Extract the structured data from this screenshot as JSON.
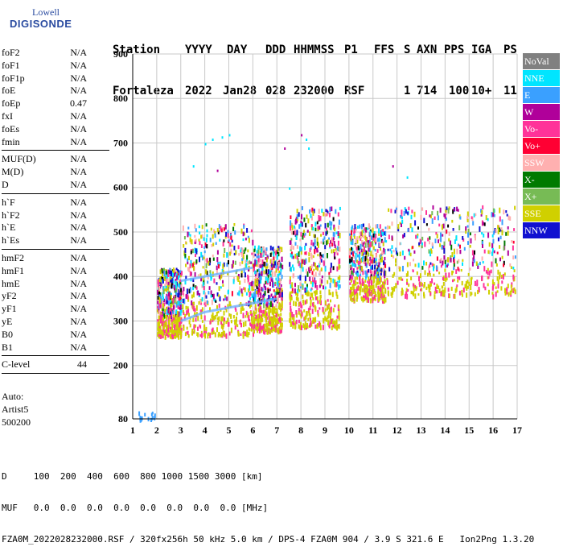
{
  "logo": {
    "line1": "Lowell",
    "line2": "DIGISONDE"
  },
  "header": {
    "labels": [
      "Station",
      "YYYY",
      "DAY",
      "DDD",
      "HHMMSS",
      "P1",
      "FFS",
      "S",
      "AXN",
      "PPS",
      "IGA",
      "PS"
    ],
    "values": [
      "Fortaleza",
      "2022",
      "Jan28",
      "028",
      "232000",
      "RSF",
      "",
      "1",
      "714",
      "100",
      "10+",
      "11"
    ]
  },
  "params": {
    "group1": [
      {
        "name": "foF2",
        "value": "N/A"
      },
      {
        "name": "foF1",
        "value": "N/A"
      },
      {
        "name": "foF1p",
        "value": "N/A"
      },
      {
        "name": "foE",
        "value": "N/A"
      },
      {
        "name": "foEp",
        "value": "0.47"
      },
      {
        "name": "fxI",
        "value": "N/A"
      },
      {
        "name": "foEs",
        "value": "N/A"
      },
      {
        "name": "fmin",
        "value": "N/A"
      }
    ],
    "group2": [
      {
        "name": "MUF(D)",
        "value": "N/A"
      },
      {
        "name": "M(D)",
        "value": "N/A"
      },
      {
        "name": "D",
        "value": "N/A"
      }
    ],
    "group3": [
      {
        "name": "h`F",
        "value": "N/A"
      },
      {
        "name": "h`F2",
        "value": "N/A"
      },
      {
        "name": "h`E",
        "value": "N/A"
      },
      {
        "name": "h`Es",
        "value": "N/A"
      }
    ],
    "group4": [
      {
        "name": "hmF2",
        "value": "N/A"
      },
      {
        "name": "hmF1",
        "value": "N/A"
      },
      {
        "name": "hmE",
        "value": "N/A"
      },
      {
        "name": "yF2",
        "value": "N/A"
      },
      {
        "name": "yF1",
        "value": "N/A"
      },
      {
        "name": "yE",
        "value": "N/A"
      },
      {
        "name": "B0",
        "value": "N/A"
      },
      {
        "name": "B1",
        "value": "N/A"
      }
    ],
    "group5": [
      {
        "name": "C-level",
        "value": "44"
      }
    ]
  },
  "auto": {
    "line1": "Auto:",
    "line2": "Artist5",
    "line3": "500200"
  },
  "legend": [
    {
      "label": "NoVal",
      "color": "#808080"
    },
    {
      "label": "NNE",
      "color": "#00e5ff"
    },
    {
      "label": "E",
      "color": "#3aa0ff"
    },
    {
      "label": "W",
      "color": "#b0009a"
    },
    {
      "label": "Vo-",
      "color": "#ff3399"
    },
    {
      "label": "Vo+",
      "color": "#ff0033"
    },
    {
      "label": "SSW",
      "color": "#ffb0b0"
    },
    {
      "label": "X-",
      "color": "#007a00"
    },
    {
      "label": "X+",
      "color": "#77bb55"
    },
    {
      "label": "SSE",
      "color": "#d0d000"
    },
    {
      "label": "NNW",
      "color": "#1010d0"
    }
  ],
  "bottom": {
    "line1": "D     100  200  400  600  800 1000 1500 3000 [km]",
    "line2": "MUF   0.0  0.0  0.0  0.0  0.0  0.0  0.0  0.0 [MHz]",
    "line3": "FZA0M_2022028232000.RSF / 320fx256h 50 kHz 5.0 km / DPS-4 FZA0M 904 / 3.9 S 321.6 E   Ion2Png 1.3.20"
  },
  "chart_data": {
    "type": "scatter",
    "xlim": [
      1,
      17
    ],
    "ylim": [
      80,
      900
    ],
    "xticks": [
      1,
      2,
      3,
      4,
      5,
      6,
      7,
      8,
      9,
      10,
      11,
      12,
      13,
      14,
      15,
      16,
      17
    ],
    "yticks": [
      80,
      200,
      300,
      400,
      500,
      600,
      700,
      800,
      900
    ],
    "grid": true,
    "legend_position": "right",
    "clusters": [
      {
        "x": [
          1.1,
          1.9
        ],
        "y": [
          80,
          100
        ],
        "series": "E"
      },
      {
        "x": [
          2.0,
          3.0
        ],
        "y": [
          270,
          420
        ],
        "series": "mixed"
      },
      {
        "x": [
          3.0,
          6.0
        ],
        "y": [
          270,
          520
        ],
        "series": "mixed"
      },
      {
        "x": [
          6.0,
          7.2
        ],
        "y": [
          280,
          470
        ],
        "series": "mixed"
      },
      {
        "x": [
          7.5,
          9.6
        ],
        "y": [
          290,
          560
        ],
        "series": "mixed"
      },
      {
        "x": [
          10.0,
          11.5
        ],
        "y": [
          350,
          520
        ],
        "series": "mixed"
      },
      {
        "x": [
          11.5,
          16.9
        ],
        "y": [
          360,
          560
        ],
        "series": "mixed"
      }
    ],
    "traces": [
      {
        "series": "E",
        "points": [
          [
            3.0,
            390
          ],
          [
            4.0,
            400
          ],
          [
            5.0,
            410
          ],
          [
            6.0,
            420
          ]
        ]
      },
      {
        "series": "E",
        "points": [
          [
            3.0,
            300
          ],
          [
            4.0,
            320
          ],
          [
            5.0,
            330
          ],
          [
            6.0,
            340
          ],
          [
            7.0,
            350
          ]
        ]
      }
    ]
  }
}
